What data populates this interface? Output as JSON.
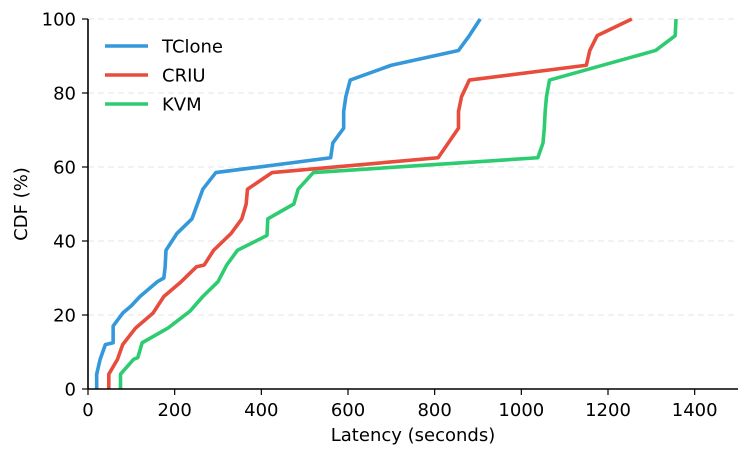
{
  "chart_data": {
    "type": "line",
    "title": "",
    "xlabel": "Latency (seconds)",
    "ylabel": "CDF (%)",
    "xlim": [
      0,
      1500
    ],
    "ylim": [
      0,
      100
    ],
    "xticks": [
      0,
      200,
      400,
      600,
      800,
      1000,
      1200,
      1400
    ],
    "yticks": [
      0,
      20,
      40,
      60,
      80,
      100
    ],
    "grid": "horizontal-dashed",
    "legend": "top-left",
    "series": [
      {
        "name": "TClone",
        "color": "#3498db",
        "points": [
          [
            20,
            0
          ],
          [
            20,
            4
          ],
          [
            28,
            8
          ],
          [
            40,
            12
          ],
          [
            58,
            12.5
          ],
          [
            58,
            17
          ],
          [
            80,
            20.5
          ],
          [
            100,
            22.5
          ],
          [
            120,
            25
          ],
          [
            160,
            29
          ],
          [
            175,
            30
          ],
          [
            178,
            33
          ],
          [
            180,
            37.5
          ],
          [
            205,
            42
          ],
          [
            240,
            46
          ],
          [
            265,
            54
          ],
          [
            295,
            58.5
          ],
          [
            560,
            62.5
          ],
          [
            565,
            66.5
          ],
          [
            590,
            70.5
          ],
          [
            590,
            75
          ],
          [
            595,
            79
          ],
          [
            605,
            83.5
          ],
          [
            700,
            87.5
          ],
          [
            855,
            91.5
          ],
          [
            880,
            95.5
          ],
          [
            905,
            100
          ]
        ]
      },
      {
        "name": "CRIU",
        "color": "#e74c3c",
        "points": [
          [
            48,
            0
          ],
          [
            48,
            4
          ],
          [
            68,
            8
          ],
          [
            80,
            12
          ],
          [
            110,
            16.5
          ],
          [
            150,
            20.5
          ],
          [
            175,
            25
          ],
          [
            215,
            29
          ],
          [
            250,
            33
          ],
          [
            268,
            33.5
          ],
          [
            290,
            37.5
          ],
          [
            330,
            42
          ],
          [
            355,
            46
          ],
          [
            365,
            50
          ],
          [
            368,
            54
          ],
          [
            425,
            58.5
          ],
          [
            808,
            62.5
          ],
          [
            855,
            70.5
          ],
          [
            855,
            75
          ],
          [
            862,
            79
          ],
          [
            880,
            83.5
          ],
          [
            1150,
            87.5
          ],
          [
            1158,
            91.5
          ],
          [
            1175,
            95.5
          ],
          [
            1255,
            100
          ]
        ]
      },
      {
        "name": "KVM",
        "color": "#2ecc71",
        "points": [
          [
            75,
            0
          ],
          [
            75,
            4
          ],
          [
            105,
            8
          ],
          [
            115,
            8.5
          ],
          [
            125,
            12.5
          ],
          [
            185,
            16.5
          ],
          [
            235,
            21
          ],
          [
            265,
            25
          ],
          [
            300,
            29
          ],
          [
            320,
            33.5
          ],
          [
            345,
            37.5
          ],
          [
            413,
            41.5
          ],
          [
            415,
            46
          ],
          [
            475,
            50
          ],
          [
            485,
            54
          ],
          [
            520,
            58.5
          ],
          [
            1038,
            62.5
          ],
          [
            1050,
            66.5
          ],
          [
            1053,
            70.5
          ],
          [
            1055,
            75
          ],
          [
            1058,
            79
          ],
          [
            1065,
            83.5
          ],
          [
            1310,
            91.5
          ],
          [
            1355,
            95.5
          ],
          [
            1357,
            100
          ]
        ]
      }
    ]
  }
}
